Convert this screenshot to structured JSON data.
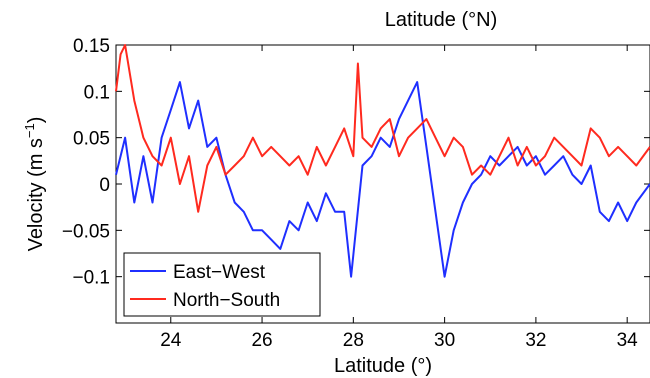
{
  "chart_data": {
    "type": "line",
    "top_title": "Latitude (°N)",
    "xlabel": "Latitude (°)",
    "ylabel": "Velocity (m s",
    "ylabel_sup": "−1",
    "ylabel_tail": ")",
    "xlim": [
      22.8,
      34.5
    ],
    "ylim": [
      -0.15,
      0.15
    ],
    "grid": false,
    "legend_position": "bottom-left",
    "x_ticks": [
      24,
      26,
      28,
      30,
      32,
      34
    ],
    "x_tick_labels": [
      "24",
      "26",
      "28",
      "30",
      "32",
      "34"
    ],
    "y_ticks": [
      0.15,
      0.1,
      0.05,
      0,
      -0.05,
      -0.1
    ],
    "y_tick_labels": [
      "0.15",
      "0.1",
      "0.05",
      "0",
      "−0.05",
      "−0.1"
    ],
    "series": [
      {
        "name": "East−West",
        "color": "#1f2fff",
        "x": [
          22.8,
          23.0,
          23.2,
          23.4,
          23.6,
          23.8,
          24.0,
          24.2,
          24.4,
          24.6,
          24.8,
          25.0,
          25.2,
          25.4,
          25.6,
          25.8,
          26.0,
          26.2,
          26.4,
          26.6,
          26.8,
          27.0,
          27.2,
          27.4,
          27.6,
          27.8,
          27.95,
          28.2,
          28.4,
          28.6,
          28.8,
          29.0,
          29.2,
          29.4,
          29.6,
          29.8,
          30.0,
          30.2,
          30.4,
          30.6,
          30.8,
          31.0,
          31.2,
          31.4,
          31.6,
          31.8,
          32.0,
          32.2,
          32.4,
          32.6,
          32.8,
          33.0,
          33.2,
          33.4,
          33.6,
          33.8,
          34.0,
          34.2,
          34.5
        ],
        "y": [
          0.01,
          0.05,
          -0.02,
          0.03,
          -0.02,
          0.05,
          0.08,
          0.11,
          0.06,
          0.09,
          0.04,
          0.05,
          0.01,
          -0.02,
          -0.03,
          -0.05,
          -0.05,
          -0.06,
          -0.07,
          -0.04,
          -0.05,
          -0.02,
          -0.04,
          -0.01,
          -0.03,
          -0.03,
          -0.1,
          0.02,
          0.03,
          0.05,
          0.04,
          0.07,
          0.09,
          0.11,
          0.04,
          -0.03,
          -0.1,
          -0.05,
          -0.02,
          0.0,
          0.01,
          0.03,
          0.02,
          0.03,
          0.04,
          0.02,
          0.03,
          0.01,
          0.02,
          0.03,
          0.01,
          0.0,
          0.02,
          -0.03,
          -0.04,
          -0.02,
          -0.04,
          -0.02,
          0.0
        ]
      },
      {
        "name": "North−South",
        "color": "#ff2a1f",
        "x": [
          22.8,
          22.9,
          23.0,
          23.2,
          23.4,
          23.6,
          23.8,
          24.0,
          24.2,
          24.4,
          24.6,
          24.8,
          25.0,
          25.2,
          25.4,
          25.6,
          25.8,
          26.0,
          26.2,
          26.4,
          26.6,
          26.8,
          27.0,
          27.2,
          27.4,
          27.6,
          27.8,
          28.0,
          28.1,
          28.2,
          28.4,
          28.6,
          28.8,
          29.0,
          29.2,
          29.4,
          29.6,
          29.8,
          30.0,
          30.2,
          30.4,
          30.6,
          30.8,
          31.0,
          31.2,
          31.4,
          31.6,
          31.8,
          32.0,
          32.2,
          32.4,
          32.6,
          32.8,
          33.0,
          33.2,
          33.4,
          33.6,
          33.8,
          34.0,
          34.2,
          34.5
        ],
        "y": [
          0.1,
          0.14,
          0.15,
          0.09,
          0.05,
          0.03,
          0.02,
          0.05,
          0.0,
          0.03,
          -0.03,
          0.02,
          0.04,
          0.01,
          0.02,
          0.03,
          0.05,
          0.03,
          0.04,
          0.03,
          0.02,
          0.03,
          0.01,
          0.04,
          0.02,
          0.04,
          0.06,
          0.03,
          0.13,
          0.05,
          0.04,
          0.06,
          0.07,
          0.03,
          0.05,
          0.06,
          0.07,
          0.05,
          0.03,
          0.05,
          0.04,
          0.01,
          0.02,
          0.01,
          0.03,
          0.05,
          0.02,
          0.04,
          0.02,
          0.03,
          0.05,
          0.04,
          0.03,
          0.02,
          0.06,
          0.05,
          0.03,
          0.04,
          0.03,
          0.02,
          0.04
        ]
      }
    ]
  }
}
